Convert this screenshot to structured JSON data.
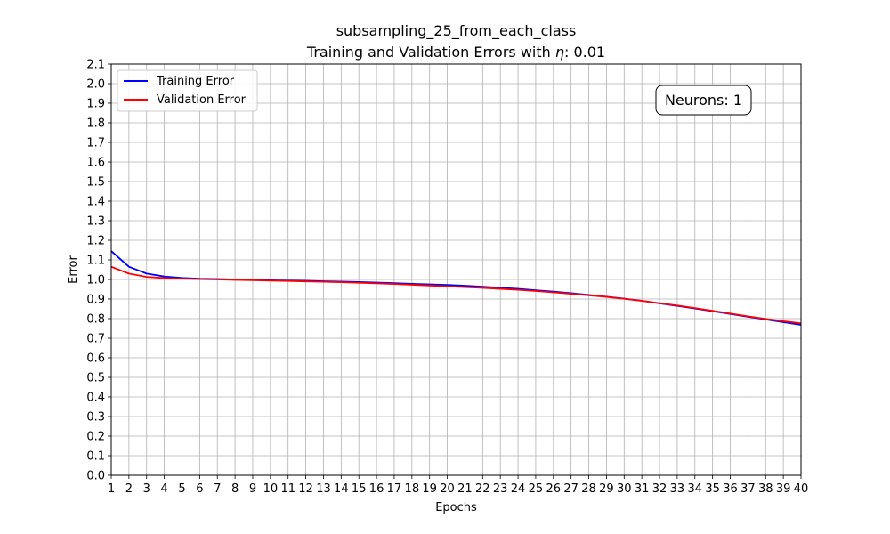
{
  "chart_data": {
    "type": "line",
    "title_line1": "subsampling_25_from_each_class",
    "title_prefix": "Training and Validation Errors with ",
    "title_symbol": "η",
    "title_suffix": ": 0.01",
    "xlabel": "Epochs",
    "ylabel": "Error",
    "xlim": [
      1,
      40
    ],
    "ylim": [
      0,
      2.1
    ],
    "x_ticks": [
      1,
      2,
      3,
      4,
      5,
      6,
      7,
      8,
      9,
      10,
      11,
      12,
      13,
      14,
      15,
      16,
      17,
      18,
      19,
      20,
      21,
      22,
      23,
      24,
      25,
      26,
      27,
      28,
      29,
      30,
      31,
      32,
      33,
      34,
      35,
      36,
      37,
      38,
      39,
      40
    ],
    "y_ticks": [
      "0.0",
      "0.1",
      "0.2",
      "0.3",
      "0.4",
      "0.5",
      "0.6",
      "0.7",
      "0.8",
      "0.9",
      "1.0",
      "1.1",
      "1.2",
      "1.3",
      "1.4",
      "1.5",
      "1.6",
      "1.7",
      "1.8",
      "1.9",
      "2.0",
      "2.1"
    ],
    "grid": true,
    "legend_position": "top-left",
    "annotation": "Neurons: 1",
    "annotation_position": "top-right",
    "x": [
      1,
      2,
      3,
      4,
      5,
      6,
      7,
      8,
      9,
      10,
      11,
      12,
      13,
      14,
      15,
      16,
      17,
      18,
      19,
      20,
      21,
      22,
      23,
      24,
      25,
      26,
      27,
      28,
      29,
      30,
      31,
      32,
      33,
      34,
      35,
      36,
      37,
      38,
      39,
      40
    ],
    "series": [
      {
        "name": "Training Error",
        "color": "#0000ff",
        "values": [
          1.145,
          1.065,
          1.03,
          1.015,
          1.008,
          1.004,
          1.002,
          1.0,
          0.998,
          0.996,
          0.994,
          0.993,
          0.991,
          0.989,
          0.987,
          0.984,
          0.981,
          0.978,
          0.975,
          0.972,
          0.968,
          0.963,
          0.958,
          0.952,
          0.945,
          0.938,
          0.93,
          0.921,
          0.912,
          0.902,
          0.891,
          0.878,
          0.865,
          0.852,
          0.838,
          0.824,
          0.81,
          0.796,
          0.782,
          0.768
        ]
      },
      {
        "name": "Validation Error",
        "color": "#ff0000",
        "values": [
          1.065,
          1.03,
          1.013,
          1.007,
          1.004,
          1.002,
          1.0,
          0.998,
          0.996,
          0.994,
          0.992,
          0.99,
          0.988,
          0.986,
          0.983,
          0.98,
          0.977,
          0.973,
          0.969,
          0.965,
          0.961,
          0.957,
          0.952,
          0.947,
          0.941,
          0.934,
          0.927,
          0.919,
          0.911,
          0.901,
          0.891,
          0.879,
          0.867,
          0.854,
          0.84,
          0.826,
          0.812,
          0.799,
          0.787,
          0.776
        ]
      }
    ]
  }
}
